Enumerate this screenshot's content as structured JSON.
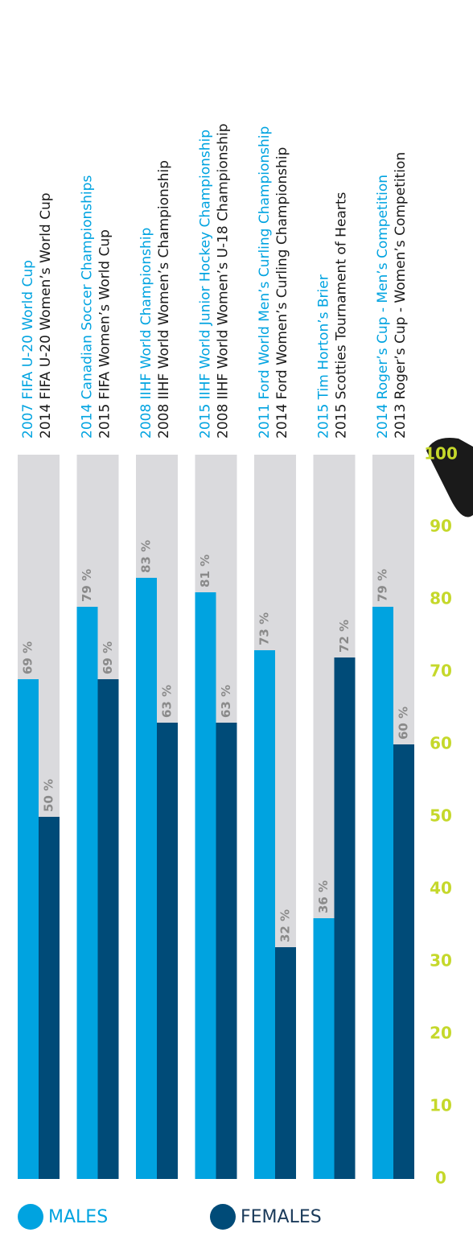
{
  "chart_data": {
    "type": "bar",
    "ylim": [
      0,
      100
    ],
    "yticks": [
      0,
      10,
      20,
      30,
      40,
      50,
      60,
      70,
      80,
      90,
      100
    ],
    "background_color": "#dadadd",
    "tick_color": "#c5d82b",
    "series": [
      {
        "name": "MALES",
        "color": "#00a3e0",
        "events": [
          "2007 FIFA U-20 World Cup",
          "2014 Canadian Soccer Championships",
          "2008 IIHF World Championship",
          "2015 IIHF World Junior Hockey Championship",
          "2011 Ford World Men’s Curling Championship",
          "2015 Tim Horton’s Brier",
          "2014 Roger’s Cup - Men’s Competition"
        ],
        "values": [
          69,
          79,
          83,
          81,
          73,
          36,
          79
        ],
        "value_labels": [
          "69 %",
          "79 %",
          "83 %",
          "81 %",
          "73 %",
          "36 %",
          "79 %"
        ]
      },
      {
        "name": "FEMALES",
        "color": "#004b78",
        "events": [
          "2014 FIFA U-20 Women’s World Cup",
          "2015 FIFA Women’s World Cup",
          "2008 IIHF World Women’s Championship",
          "2008 IIHF World Women’s U-18 Championship",
          "2014 Ford Women’s Curling Championship",
          "2015 Scotties Tournament of Hearts",
          "2013 Roger’s Cup - Women’s Competition"
        ],
        "values": [
          50,
          69,
          63,
          63,
          32,
          72,
          60
        ],
        "value_labels": [
          "50 %",
          "69 %",
          "63 %",
          "63 %",
          "32 %",
          "72 %",
          "60 %"
        ]
      }
    ]
  }
}
